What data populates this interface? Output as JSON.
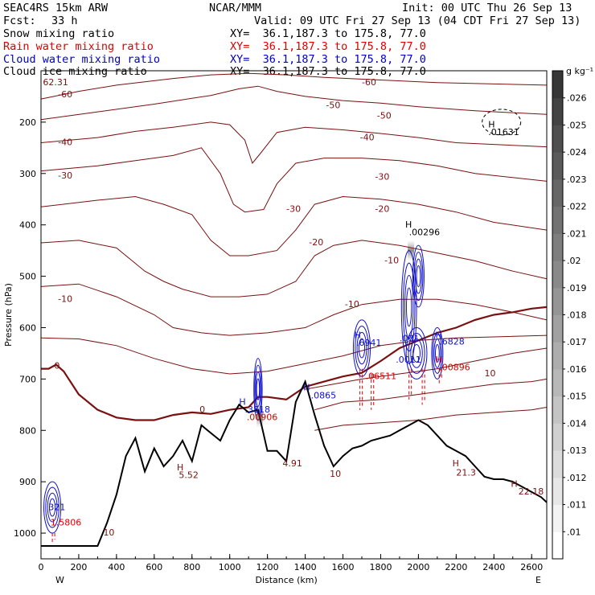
{
  "header": {
    "model": "SEAC4RS 15km ARW",
    "fcst_label": "Fcst:",
    "fcst_value": "33 h",
    "center": "NCAR/MMM",
    "init": "Init: 00 UTC Thu 26 Sep 13",
    "valid": "Valid: 09 UTC Fri 27 Sep 13 (04 CDT Fri 27 Sep 13)"
  },
  "fields": [
    {
      "name": "Snow mixing ratio",
      "xy": "XY=  36.1,187.3 to 175.8, 77.0",
      "color": "#000000"
    },
    {
      "name": "Rain water mixing ratio",
      "xy": "XY=  36.1,187.3 to 175.8, 77.0",
      "color": "#e00000"
    },
    {
      "name": "Cloud water mixing ratio",
      "xy": "XY=  36.1,187.3 to 175.8, 77.0",
      "color": "#0000cc"
    },
    {
      "name": "Cloud ice mixing ratio",
      "xy": "XY=  36.1,187.3 to 175.8, 77.0",
      "color": "#000000"
    }
  ],
  "colors": {
    "isotherm": "#7a1010",
    "freezing_line": "#7a1010",
    "cloud_water": "#1010cc",
    "rain": "#e00000",
    "terrain": "#000000"
  },
  "chart_data": {
    "type": "cross-section",
    "xlabel": "Distance (km)",
    "ylabel": "Pressure (hPa)",
    "xlim": [
      0,
      2680
    ],
    "ylim": [
      1050,
      100
    ],
    "x_ticks": [
      0,
      200,
      400,
      600,
      800,
      1000,
      1200,
      1400,
      1600,
      1800,
      2000,
      2200,
      2400,
      2600
    ],
    "y_ticks": [
      200,
      300,
      400,
      500,
      600,
      700,
      800,
      900,
      1000
    ],
    "left_end_label": "W",
    "right_end_label": "E",
    "colorbar": {
      "unit": "g kg⁻¹",
      "ticks": [
        ".01",
        ".011",
        ".012",
        ".013",
        ".014",
        ".015",
        ".016",
        ".017",
        ".018",
        ".019",
        ".02",
        ".021",
        ".022",
        ".023",
        ".024",
        ".025",
        ".026"
      ]
    },
    "isotherms": [
      {
        "label": "-60",
        "x": [
          0,
          200,
          400,
          700,
          900,
          1100,
          1300,
          1500,
          1800,
          2100,
          2680
        ],
        "p": [
          155,
          140,
          128,
          115,
          108,
          105,
          108,
          113,
          118,
          123,
          128
        ]
      },
      {
        "label": "-50",
        "x": [
          0,
          300,
          600,
          900,
          1050,
          1150,
          1250,
          1400,
          1600,
          1800,
          2000,
          2300,
          2680
        ],
        "p": [
          195,
          180,
          165,
          148,
          135,
          130,
          140,
          150,
          158,
          163,
          170,
          178,
          185
        ]
      },
      {
        "label": "-40",
        "x": [
          0,
          300,
          500,
          700,
          900,
          1000,
          1080,
          1120,
          1160,
          1250,
          1400,
          1600,
          1800,
          2000,
          2200,
          2680
        ],
        "p": [
          240,
          230,
          218,
          210,
          200,
          205,
          235,
          280,
          262,
          220,
          210,
          215,
          222,
          230,
          240,
          248
        ]
      },
      {
        "label": "-30",
        "x": [
          0,
          300,
          500,
          700,
          850,
          950,
          1020,
          1080,
          1180,
          1250,
          1350,
          1500,
          1700,
          1900,
          2100,
          2300,
          2680
        ],
        "p": [
          295,
          285,
          275,
          265,
          250,
          300,
          360,
          375,
          370,
          320,
          280,
          270,
          270,
          275,
          285,
          300,
          315
        ]
      },
      {
        "label": "-20",
        "x": [
          0,
          300,
          500,
          650,
          800,
          900,
          1000,
          1100,
          1250,
          1350,
          1450,
          1600,
          1800,
          2000,
          2200,
          2400,
          2680
        ],
        "p": [
          365,
          352,
          345,
          360,
          380,
          430,
          460,
          460,
          450,
          410,
          360,
          345,
          350,
          360,
          375,
          395,
          410
        ]
      },
      {
        "label": "-10",
        "x": [
          0,
          200,
          400,
          550,
          650,
          750,
          900,
          1050,
          1200,
          1350,
          1450,
          1550,
          1700,
          1900,
          2100,
          2300,
          2500,
          2680
        ],
        "p": [
          435,
          430,
          445,
          490,
          510,
          525,
          540,
          540,
          535,
          510,
          460,
          440,
          430,
          440,
          455,
          470,
          490,
          505
        ]
      },
      {
        "label": "",
        "x": [
          0,
          200,
          400,
          600,
          700,
          850,
          1000,
          1200,
          1400,
          1550,
          1700,
          1900,
          2100,
          2300,
          2500,
          2680
        ],
        "p": [
          520,
          515,
          540,
          575,
          600,
          610,
          615,
          610,
          600,
          575,
          555,
          545,
          545,
          555,
          570,
          585
        ]
      },
      {
        "label": "",
        "x": [
          0,
          200,
          400,
          600,
          800,
          1000,
          1200,
          1400,
          1600,
          1800,
          2000,
          2200,
          2400,
          2680
        ],
        "p": [
          620,
          622,
          635,
          660,
          680,
          690,
          685,
          670,
          655,
          635,
          625,
          620,
          618,
          615
        ]
      },
      {
        "label": "10",
        "x": [
          1400,
          1550,
          1700,
          1900,
          2100,
          2300,
          2500,
          2680
        ],
        "p": [
          720,
          710,
          700,
          690,
          680,
          665,
          650,
          640
        ]
      },
      {
        "label": "",
        "x": [
          1450,
          1600,
          1800,
          2000,
          2200,
          2400,
          2600,
          2680
        ],
        "p": [
          760,
          745,
          740,
          730,
          720,
          710,
          705,
          700
        ]
      },
      {
        "label": "",
        "x": [
          1450,
          1600,
          1800,
          2000,
          2200,
          2400,
          2600,
          2680
        ],
        "p": [
          800,
          790,
          785,
          780,
          770,
          765,
          760,
          755
        ]
      }
    ],
    "freezing_line": {
      "label": "0",
      "x": [
        0,
        40,
        80,
        120,
        200,
        300,
        400,
        500,
        600,
        700,
        800,
        900,
        1000,
        1100,
        1150,
        1200,
        1300,
        1400,
        1500,
        1600,
        1700,
        1800,
        1900,
        2000,
        2100,
        2200,
        2300,
        2400,
        2500,
        2600,
        2680
      ],
      "p": [
        680,
        680,
        672,
        685,
        730,
        760,
        775,
        780,
        780,
        770,
        765,
        768,
        760,
        755,
        735,
        735,
        740,
        715,
        705,
        695,
        688,
        665,
        640,
        625,
        610,
        600,
        585,
        575,
        570,
        563,
        560
      ]
    },
    "terrain": {
      "x": [
        0,
        50,
        100,
        150,
        200,
        250,
        300,
        350,
        400,
        450,
        500,
        550,
        600,
        650,
        700,
        750,
        800,
        850,
        900,
        950,
        1000,
        1050,
        1100,
        1150,
        1200,
        1250,
        1300,
        1350,
        1400,
        1450,
        1500,
        1550,
        1600,
        1650,
        1700,
        1750,
        1800,
        1850,
        1900,
        1950,
        2000,
        2050,
        2100,
        2150,
        2200,
        2250,
        2300,
        2350,
        2400,
        2450,
        2500,
        2550,
        2600,
        2650,
        2680
      ],
      "p": [
        1025,
        1025,
        1025,
        1025,
        1025,
        1025,
        1025,
        980,
        925,
        850,
        815,
        880,
        835,
        870,
        850,
        820,
        860,
        790,
        805,
        820,
        780,
        750,
        765,
        760,
        840,
        840,
        860,
        745,
        705,
        770,
        830,
        870,
        850,
        835,
        830,
        820,
        815,
        810,
        800,
        790,
        780,
        790,
        810,
        830,
        840,
        850,
        870,
        890,
        895,
        895,
        900,
        910,
        920,
        930,
        940
      ]
    },
    "annotations": [
      {
        "text": "H",
        "x": 2370,
        "p": 210,
        "color": "#000000"
      },
      {
        "text": ".01631",
        "x": 2370,
        "p": 225,
        "color": "#000000"
      },
      {
        "text": "H",
        "x": 1930,
        "p": 405,
        "color": "#000000"
      },
      {
        "text": ".00296",
        "x": 1950,
        "p": 420,
        "color": "#000000"
      },
      {
        "text": "62.31",
        "x": 10,
        "p": 128,
        "color": "#7a1010"
      },
      {
        "text": "H",
        "x": 1660,
        "p": 620,
        "color": "#1010cc"
      },
      {
        "text": ".6941",
        "x": 1670,
        "p": 635,
        "color": "#1010cc"
      },
      {
        "text": ".001",
        "x": 1900,
        "p": 627,
        "color": "#1010cc"
      },
      {
        "text": ".0011",
        "x": 1880,
        "p": 668,
        "color": "#1010cc"
      },
      {
        "text": "H",
        "x": 2090,
        "p": 620,
        "color": "#1010cc"
      },
      {
        "text": ".6828",
        "x": 2110,
        "p": 633,
        "color": "#1010cc"
      },
      {
        "text": "H",
        "x": 2090,
        "p": 668,
        "color": "#e00000"
      },
      {
        "text": ".00896",
        "x": 2110,
        "p": 683,
        "color": "#e00000"
      },
      {
        "text": ".06511",
        "x": 1720,
        "p": 700,
        "color": "#e00000"
      },
      {
        "text": "H",
        "x": 1390,
        "p": 722,
        "color": "#1010cc"
      },
      {
        "text": ".0865",
        "x": 1430,
        "p": 738,
        "color": "#1010cc"
      },
      {
        "text": "H",
        "x": 1050,
        "p": 750,
        "color": "#1010cc"
      },
      {
        "text": ".3818",
        "x": 1080,
        "p": 765,
        "color": "#1010cc"
      },
      {
        "text": ".00906",
        "x": 1090,
        "p": 780,
        "color": "#e00000"
      },
      {
        "text": "H",
        "x": 720,
        "p": 878,
        "color": "#7a1010"
      },
      {
        "text": "5.52",
        "x": 730,
        "p": 893,
        "color": "#7a1010"
      },
      {
        "text": "4.91",
        "x": 1280,
        "p": 870,
        "color": "#7a1010"
      },
      {
        "text": "10",
        "x": 1530,
        "p": 890,
        "color": "#7a1010"
      },
      {
        "text": "H",
        "x": 2180,
        "p": 870,
        "color": "#7a1010"
      },
      {
        "text": "21.3",
        "x": 2200,
        "p": 888,
        "color": "#7a1010"
      },
      {
        "text": "H",
        "x": 2490,
        "p": 910,
        "color": "#7a1010"
      },
      {
        "text": "22.18",
        "x": 2530,
        "p": 925,
        "color": "#7a1010"
      },
      {
        "text": "10",
        "x": 330,
        "p": 1005,
        "color": "#7a1010"
      },
      {
        "text": "321",
        "x": 40,
        "p": 955,
        "color": "#1010cc"
      },
      {
        "text": "1.5806",
        "x": 50,
        "p": 985,
        "color": "#e00000"
      },
      {
        "text": "-50",
        "x": 1510,
        "p": 173,
        "color": "#7a1010"
      },
      {
        "text": "-60",
        "x": 1700,
        "p": 128,
        "color": "#7a1010"
      },
      {
        "text": "-50",
        "x": 1780,
        "p": 193,
        "color": "#7a1010"
      },
      {
        "text": "-40",
        "x": 1690,
        "p": 235,
        "color": "#7a1010"
      },
      {
        "text": "-40",
        "x": 90,
        "p": 245,
        "color": "#7a1010"
      },
      {
        "text": "-30",
        "x": 90,
        "p": 310,
        "color": "#7a1010"
      },
      {
        "text": "-30",
        "x": 1300,
        "p": 375,
        "color": "#7a1010"
      },
      {
        "text": "-30",
        "x": 1770,
        "p": 312,
        "color": "#7a1010"
      },
      {
        "text": "-20",
        "x": 1420,
        "p": 440,
        "color": "#7a1010"
      },
      {
        "text": "-20",
        "x": 1770,
        "p": 375,
        "color": "#7a1010"
      },
      {
        "text": "-10",
        "x": 90,
        "p": 550,
        "color": "#7a1010"
      },
      {
        "text": "-10",
        "x": 1610,
        "p": 560,
        "color": "#7a1010"
      },
      {
        "text": "-10",
        "x": 1820,
        "p": 475,
        "color": "#7a1010"
      },
      {
        "text": "0",
        "x": 70,
        "p": 680,
        "color": "#7a1010"
      },
      {
        "text": "0",
        "x": 840,
        "p": 765,
        "color": "#7a1010"
      },
      {
        "text": "-60",
        "x": 90,
        "p": 152,
        "color": "#7a1010"
      },
      {
        "text": "10",
        "x": 2350,
        "p": 695,
        "color": "#7a1010"
      }
    ],
    "cloud_water_cells": [
      {
        "x": 1950,
        "p": 560,
        "rx": 40,
        "rp": 110
      },
      {
        "x": 2000,
        "p": 500,
        "rx": 30,
        "rp": 60
      },
      {
        "x": 1700,
        "p": 640,
        "rx": 45,
        "rp": 55
      },
      {
        "x": 1990,
        "p": 650,
        "rx": 55,
        "rp": 50
      },
      {
        "x": 2100,
        "p": 650,
        "rx": 30,
        "rp": 50
      },
      {
        "x": 1150,
        "p": 720,
        "rx": 22,
        "rp": 60
      },
      {
        "x": 60,
        "p": 950,
        "rx": 45,
        "rp": 50
      }
    ],
    "rain_columns": [
      {
        "x": 1690,
        "p_top": 680,
        "p_bot": 760
      },
      {
        "x": 1750,
        "p_top": 690,
        "p_bot": 760
      },
      {
        "x": 1950,
        "p_top": 680,
        "p_bot": 740
      },
      {
        "x": 2020,
        "p_top": 680,
        "p_bot": 750
      },
      {
        "x": 2110,
        "p_top": 680,
        "p_bot": 710
      },
      {
        "x": 60,
        "p_top": 1000,
        "p_bot": 1020
      }
    ],
    "ice_shading": [
      {
        "x": 1960,
        "p_top": 430,
        "p_bot": 470
      },
      {
        "x": 1160,
        "p_top": 750,
        "p_bot": 795
      }
    ]
  }
}
